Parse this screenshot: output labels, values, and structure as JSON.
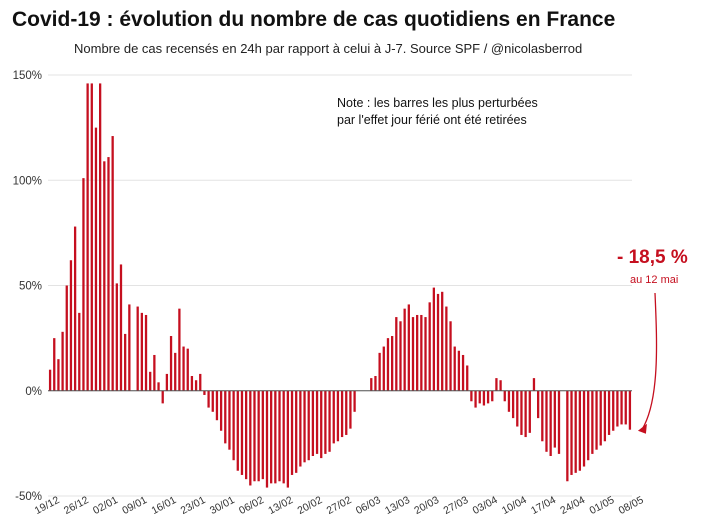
{
  "chart_data": {
    "type": "bar",
    "title": "Covid-19 : évolution du nombre de cas quotidiens en France",
    "subtitle": "Nombre de cas recensés en 24h par rapport à celui à J-7. Source SPF / @nicolasberrod",
    "note_lines": [
      "Note : les barres les plus perturbées",
      "par l'effet jour férié ont été retirées"
    ],
    "callout": {
      "value": "- 18,5 %",
      "date": "au 12 mai"
    },
    "y_unit": "%",
    "ylim": [
      -50,
      150
    ],
    "yticks": [
      -50,
      0,
      50,
      100,
      150
    ],
    "ytick_labels": [
      "-50%",
      "0%",
      "50%",
      "100%",
      "150%"
    ],
    "grid": true,
    "bar_color": "#c50f1f",
    "x_start": "19/12",
    "x_tick_labels": [
      "19/12",
      "26/12",
      "02/01",
      "09/01",
      "16/01",
      "23/01",
      "30/01",
      "06/02",
      "13/02",
      "20/02",
      "27/02",
      "06/03",
      "13/03",
      "20/03",
      "27/03",
      "03/04",
      "10/04",
      "17/04",
      "24/04",
      "01/05",
      "08/05"
    ],
    "values": [
      10,
      25,
      15,
      28,
      50,
      62,
      78,
      37,
      101,
      146,
      146,
      125,
      146,
      109,
      111,
      121,
      51,
      60,
      27,
      41,
      0,
      40,
      37,
      36,
      9,
      17,
      4,
      -6,
      8,
      26,
      18,
      39,
      21,
      20,
      7,
      5,
      8,
      -2,
      -8,
      -10,
      -14,
      -19,
      -25,
      -28,
      -33,
      -38,
      -40,
      -42,
      -45,
      -43,
      -43,
      -42,
      -46,
      -44,
      -44,
      -43,
      -44,
      -46,
      -40,
      -39,
      -36,
      -34,
      -33,
      -31,
      -30,
      -32,
      -30,
      -29,
      -25,
      -24,
      -22,
      -21,
      -18,
      -10,
      0,
      0,
      0,
      6,
      7,
      18,
      21,
      25,
      26,
      35,
      33,
      39,
      41,
      35,
      36,
      36,
      35,
      42,
      49,
      46,
      47,
      40,
      33,
      21,
      19,
      17,
      12,
      -5,
      -8,
      -6,
      -7,
      -6,
      -5,
      6,
      5,
      -5,
      -10,
      -13,
      -17,
      -21,
      -22,
      -20,
      6,
      -13,
      -24,
      -29,
      -31,
      -27,
      -30,
      0,
      -43,
      -40,
      -39,
      -38,
      -36,
      -33,
      -30,
      -28,
      -26,
      -24,
      -21,
      -19,
      -17,
      -16,
      -16,
      -18.5
    ]
  }
}
